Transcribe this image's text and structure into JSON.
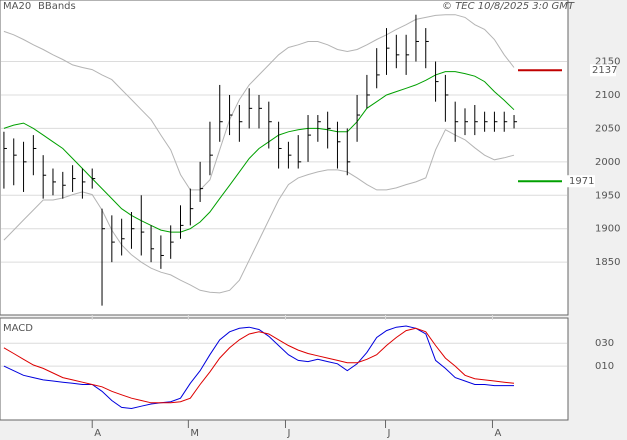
{
  "chart_data": [
    {
      "type": "hlc",
      "title": "© TEC 10/8/2025 3:0 GMT",
      "xlim": [
        -0.4,
        57.5
      ],
      "xticks": [
        {
          "value": 9,
          "label": "A"
        },
        {
          "value": 18.8,
          "label": "M"
        },
        {
          "value": 28.7,
          "label": "J"
        },
        {
          "value": 38.9,
          "label": "J"
        },
        {
          "value": 49.8,
          "label": "A"
        }
      ],
      "ylim": [
        1771,
        2242
      ],
      "yticks": [
        1850,
        1900,
        1950,
        2000,
        2050,
        2100,
        2150
      ],
      "grid": true,
      "bar_color": "#000000",
      "high": [
        2045,
        2035,
        2030,
        2040,
        2010,
        1990,
        1985,
        1995,
        1990,
        1990,
        1930,
        1920,
        1915,
        1925,
        1950,
        1905,
        1890,
        1905,
        1935,
        1960,
        2000,
        2060,
        2115,
        2100,
        2085,
        2110,
        2100,
        2090,
        2060,
        2030,
        2040,
        2070,
        2070,
        2075,
        2060,
        2050,
        2100,
        2130,
        2170,
        2200,
        2190,
        2190,
        2220,
        2200,
        2150,
        2130,
        2090,
        2080,
        2085,
        2075,
        2075,
        2075,
        2070
      ],
      "low": [
        1960,
        1965,
        1955,
        1980,
        1945,
        1950,
        1945,
        1955,
        1945,
        1960,
        1785,
        1850,
        1860,
        1870,
        1860,
        1850,
        1840,
        1855,
        1885,
        1905,
        1940,
        1980,
        2030,
        2040,
        2030,
        2050,
        2050,
        2020,
        1990,
        1990,
        1990,
        2000,
        2030,
        2020,
        1990,
        1980,
        2030,
        2080,
        2110,
        2130,
        2140,
        2130,
        2150,
        2140,
        2090,
        2060,
        2030,
        2040,
        2040,
        2045,
        2045,
        2045,
        2050
      ],
      "close": [
        2020,
        2010,
        2000,
        2020,
        1980,
        1970,
        1965,
        1975,
        1970,
        1975,
        1900,
        1880,
        1885,
        1900,
        1895,
        1870,
        1860,
        1880,
        1905,
        1930,
        1960,
        2010,
        2060,
        2070,
        2060,
        2080,
        2080,
        2060,
        2020,
        2010,
        2000,
        2040,
        2060,
        2050,
        2030,
        2000,
        2070,
        2100,
        2130,
        2170,
        2160,
        2160,
        2180,
        2180,
        2120,
        2100,
        2060,
        2060,
        2060,
        2060,
        2060,
        2060,
        2060
      ],
      "series": [
        {
          "name": "MA20",
          "color": "#00a000",
          "values": [
            2050,
            2055,
            2058,
            2050,
            2040,
            2030,
            2020,
            2005,
            1990,
            1975,
            1960,
            1945,
            1930,
            1920,
            1912,
            1905,
            1898,
            1895,
            1895,
            1900,
            1910,
            1925,
            1945,
            1965,
            1985,
            2005,
            2020,
            2030,
            2040,
            2045,
            2048,
            2050,
            2050,
            2048,
            2045,
            2045,
            2060,
            2080,
            2090,
            2100,
            2105,
            2110,
            2115,
            2122,
            2130,
            2135,
            2135,
            2132,
            2128,
            2120,
            2105,
            2092,
            2078
          ]
        },
        {
          "name": "BBands",
          "color": "#b4b4b4",
          "upper": [
            2195,
            2190,
            2183,
            2175,
            2168,
            2160,
            2153,
            2145,
            2141,
            2138,
            2130,
            2123,
            2108,
            2093,
            2078,
            2063,
            2040,
            2018,
            1981,
            1958,
            1958,
            1973,
            2018,
            2063,
            2093,
            2115,
            2130,
            2145,
            2160,
            2171,
            2175,
            2180,
            2180,
            2175,
            2168,
            2165,
            2168,
            2175,
            2183,
            2190,
            2198,
            2205,
            2213,
            2216,
            2219,
            2220,
            2220,
            2216,
            2205,
            2198,
            2183,
            2160,
            2141
          ],
          "lower": [
            1883,
            1898,
            1913,
            1928,
            1943,
            1943,
            1946,
            1951,
            1955,
            1951,
            1928,
            1898,
            1876,
            1861,
            1850,
            1841,
            1835,
            1831,
            1823,
            1816,
            1808,
            1805,
            1804,
            1808,
            1823,
            1853,
            1883,
            1913,
            1943,
            1966,
            1976,
            1981,
            1985,
            1988,
            1988,
            1985,
            1976,
            1966,
            1958,
            1958,
            1961,
            1966,
            1970,
            1976,
            2018,
            2048,
            2040,
            2033,
            2021,
            2010,
            2003,
            2006,
            2010
          ]
        }
      ],
      "levels": [
        {
          "value": 2137,
          "color": "#c00000"
        },
        {
          "value": 1971,
          "color": "#00a000"
        }
      ]
    },
    {
      "type": "line",
      "title": "MACD",
      "xlim": [
        -0.4,
        57.5
      ],
      "ylim": [
        -37,
        52
      ],
      "yticks": [
        {
          "value": 30,
          "label": "030"
        },
        {
          "value": 10,
          "label": "010"
        }
      ],
      "grid": true,
      "series": [
        {
          "color": "#0000dd",
          "values": [
            10,
            6,
            2,
            0,
            -2,
            -3,
            -4,
            -5,
            -6,
            -6,
            -12,
            -20,
            -26,
            -27,
            -25,
            -23,
            -22,
            -21,
            -18,
            -5,
            6,
            20,
            33,
            40,
            43,
            44,
            42,
            36,
            28,
            20,
            15,
            14,
            16,
            14,
            12,
            6,
            12,
            22,
            35,
            41,
            44,
            45,
            43,
            38,
            15,
            8,
            0,
            -3,
            -6,
            -6,
            -7,
            -7,
            -7
          ]
        },
        {
          "color": "#dd0000",
          "values": [
            26,
            21,
            16,
            11,
            8,
            4,
            0,
            -2,
            -4,
            -6,
            -8,
            -12,
            -15,
            -18,
            -20,
            -22,
            -22,
            -22,
            -21,
            -18,
            -6,
            5,
            17,
            26,
            33,
            38,
            40,
            38,
            33,
            28,
            24,
            21,
            19,
            17,
            15,
            13,
            13,
            16,
            20,
            28,
            35,
            41,
            43,
            40,
            28,
            17,
            10,
            2,
            -1,
            -2,
            -3,
            -4,
            -5
          ]
        }
      ]
    }
  ]
}
